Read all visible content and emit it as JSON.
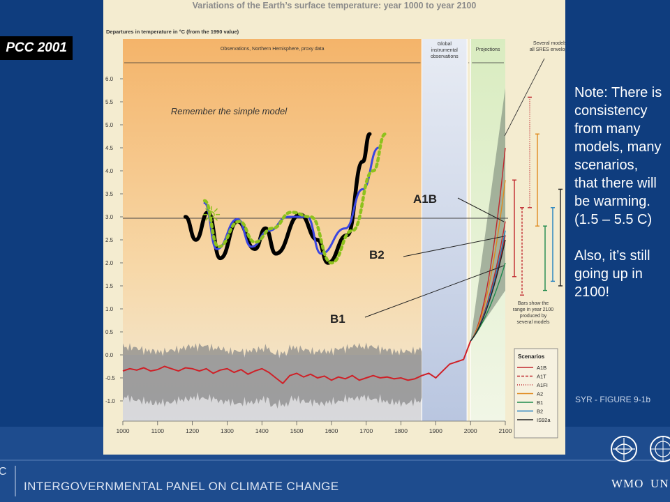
{
  "badge": "PCC 2001",
  "note": {
    "lines": [
      "Note: There is",
      "consistency",
      "from many",
      "models, many",
      "scenarios,",
      "that there will",
      "be warming.",
      "(1.5 – 5.5 C)"
    ],
    "lines2": [
      "Also, it’s still",
      "going up in",
      "2100!"
    ]
  },
  "figure_id": "SYR - FIGURE 9-1b",
  "footer": {
    "abbr": "C",
    "org_name": "INTERGOVERNMENTAL PANEL ON CLIMATE CHANGE",
    "logo1": "WMO",
    "logo2": "UN"
  },
  "colors": {
    "background": "#0f3d7e",
    "panel": "#f4ecd0",
    "observations": "#cf2027",
    "proxy_band": "#8a8a8a",
    "envelope": "#6f7d70",
    "model_black": "#000000",
    "model_blue": "#3b46e0",
    "model_green": "#8ec21d"
  },
  "chart_data": {
    "type": "line",
    "title": "Variations of the Earth’s surface temperature: year 1000 to year 2100",
    "ylabel": "Departures in temperature in °C (from the 1990 value)",
    "xlim": [
      1000,
      2100
    ],
    "ylim": [
      -1.0,
      6.0
    ],
    "x_ticks": [
      "1000",
      "1100",
      "1200",
      "1300",
      "1400",
      "1500",
      "1600",
      "1700",
      "1800",
      "1900",
      "2000",
      "2100"
    ],
    "y_ticks": [
      "6.0",
      "5.5",
      "5.0",
      "4.5",
      "4.0",
      "3.5",
      "3.0",
      "2.5",
      "2.0",
      "1.5",
      "1.0",
      "0.5",
      "0.0",
      "-0.5",
      "-1.0"
    ],
    "sections": [
      "Observations, Northern Hemisphere, proxy data",
      "Global instrumental observations",
      "Projections"
    ],
    "annotations": {
      "envelope": "Several models all SRES envelope",
      "remember": "Remember the simple model",
      "bars_note": "Bars show the range in year 2100 produced by several models",
      "label_a1b": "A1B",
      "label_b2": "B2",
      "label_b1": "B1"
    },
    "legend_title": "Scenarios",
    "legend": [
      {
        "name": "A1B",
        "color": "#c0272d",
        "dash": "solid"
      },
      {
        "name": "A1T",
        "color": "#c0272d",
        "dash": "dashed"
      },
      {
        "name": "A1FI",
        "color": "#c0272d",
        "dash": "dotted"
      },
      {
        "name": "A2",
        "color": "#e08a1e",
        "dash": "solid"
      },
      {
        "name": "B1",
        "color": "#1f8a4c",
        "dash": "solid"
      },
      {
        "name": "B2",
        "color": "#1f7fbf",
        "dash": "solid"
      },
      {
        "name": "IS92a",
        "color": "#222222",
        "dash": "solid"
      }
    ],
    "series": [
      {
        "name": "Observations",
        "color": "#cf2027",
        "points": [
          [
            1000,
            -0.35
          ],
          [
            1020,
            -0.3
          ],
          [
            1040,
            -0.33
          ],
          [
            1060,
            -0.28
          ],
          [
            1080,
            -0.35
          ],
          [
            1100,
            -0.32
          ],
          [
            1120,
            -0.25
          ],
          [
            1140,
            -0.3
          ],
          [
            1160,
            -0.35
          ],
          [
            1180,
            -0.28
          ],
          [
            1200,
            -0.3
          ],
          [
            1220,
            -0.35
          ],
          [
            1240,
            -0.3
          ],
          [
            1260,
            -0.4
          ],
          [
            1280,
            -0.33
          ],
          [
            1300,
            -0.3
          ],
          [
            1320,
            -0.38
          ],
          [
            1340,
            -0.32
          ],
          [
            1360,
            -0.42
          ],
          [
            1380,
            -0.35
          ],
          [
            1400,
            -0.3
          ],
          [
            1420,
            -0.38
          ],
          [
            1440,
            -0.5
          ],
          [
            1460,
            -0.62
          ],
          [
            1480,
            -0.45
          ],
          [
            1500,
            -0.4
          ],
          [
            1520,
            -0.48
          ],
          [
            1540,
            -0.42
          ],
          [
            1560,
            -0.5
          ],
          [
            1580,
            -0.46
          ],
          [
            1600,
            -0.55
          ],
          [
            1620,
            -0.48
          ],
          [
            1640,
            -0.52
          ],
          [
            1660,
            -0.45
          ],
          [
            1680,
            -0.55
          ],
          [
            1700,
            -0.5
          ],
          [
            1720,
            -0.45
          ],
          [
            1740,
            -0.5
          ],
          [
            1760,
            -0.48
          ],
          [
            1780,
            -0.52
          ],
          [
            1800,
            -0.5
          ],
          [
            1820,
            -0.55
          ],
          [
            1840,
            -0.52
          ],
          [
            1860,
            -0.45
          ],
          [
            1880,
            -0.4
          ],
          [
            1900,
            -0.5
          ],
          [
            1920,
            -0.35
          ],
          [
            1940,
            -0.2
          ],
          [
            1960,
            -0.15
          ],
          [
            1980,
            -0.1
          ],
          [
            2000,
            0.3
          ]
        ]
      }
    ],
    "envelope": {
      "x": [
        2000,
        2100
      ],
      "low": [
        0.3,
        1.4
      ],
      "high": [
        0.3,
        5.8
      ]
    },
    "projections": [
      {
        "name": "A1B",
        "color": "#c0272d",
        "end": 2.9
      },
      {
        "name": "A1T",
        "color": "#c0272d",
        "end": 2.6
      },
      {
        "name": "A1FI",
        "color": "#c0272d",
        "end": 4.5
      },
      {
        "name": "A2",
        "color": "#e08a1e",
        "end": 3.8
      },
      {
        "name": "B1",
        "color": "#1f8a4c",
        "end": 2.0
      },
      {
        "name": "B2",
        "color": "#1f7fbf",
        "end": 2.7
      },
      {
        "name": "IS92a",
        "color": "#222222",
        "end": 2.5
      }
    ],
    "range_bars": [
      {
        "name": "A1B",
        "color": "#c0272d",
        "low": 1.7,
        "high": 3.8
      },
      {
        "name": "A1T",
        "color": "#c0272d",
        "low": 1.3,
        "high": 3.2
      },
      {
        "name": "A1FI",
        "color": "#c0272d",
        "low": 3.2,
        "high": 5.6
      },
      {
        "name": "A2",
        "color": "#e08a1e",
        "low": 2.8,
        "high": 4.8
      },
      {
        "name": "B1",
        "color": "#1f8a4c",
        "low": 1.4,
        "high": 2.8
      },
      {
        "name": "B2",
        "color": "#1f7fbf",
        "low": 1.6,
        "high": 3.2
      },
      {
        "name": "IS92a",
        "color": "#222222",
        "low": 1.5,
        "high": 3.6
      }
    ],
    "hand_drawn": [
      {
        "name": "simple-model-black",
        "color": "#000000",
        "dash": "solid",
        "points": [
          [
            1180,
            3.0
          ],
          [
            1210,
            2.5
          ],
          [
            1245,
            3.1
          ],
          [
            1280,
            2.1
          ],
          [
            1330,
            2.9
          ],
          [
            1380,
            2.3
          ],
          [
            1410,
            2.75
          ],
          [
            1440,
            2.2
          ],
          [
            1510,
            3.05
          ],
          [
            1560,
            2.5
          ],
          [
            1590,
            2.0
          ],
          [
            1645,
            2.6
          ],
          [
            1690,
            4.2
          ],
          [
            1710,
            4.8
          ]
        ]
      },
      {
        "name": "simple-model-blue",
        "color": "#3b46e0",
        "dash": "solid",
        "points": [
          [
            1235,
            3.3
          ],
          [
            1270,
            2.3
          ],
          [
            1330,
            2.95
          ],
          [
            1370,
            2.35
          ],
          [
            1420,
            2.7
          ],
          [
            1475,
            3.0
          ],
          [
            1530,
            3.0
          ],
          [
            1570,
            2.2
          ],
          [
            1640,
            2.75
          ],
          [
            1690,
            3.6
          ],
          [
            1735,
            4.5
          ]
        ]
      },
      {
        "name": "simple-model-green",
        "color": "#8ec21d",
        "dash": "dotted",
        "points": [
          [
            1235,
            3.35
          ],
          [
            1275,
            2.35
          ],
          [
            1335,
            2.9
          ],
          [
            1380,
            2.45
          ],
          [
            1430,
            2.75
          ],
          [
            1485,
            3.1
          ],
          [
            1540,
            3.0
          ],
          [
            1600,
            2.0
          ],
          [
            1660,
            2.7
          ],
          [
            1720,
            4.0
          ],
          [
            1755,
            4.8
          ]
        ]
      }
    ],
    "reference_y": 2.97
  }
}
